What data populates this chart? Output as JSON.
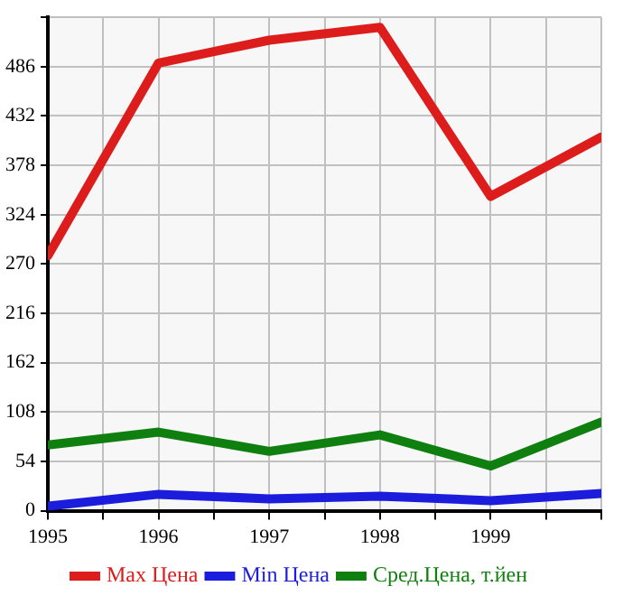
{
  "chart_data": {
    "type": "line",
    "x": [
      1995,
      1996,
      1997,
      1998,
      1999,
      2000
    ],
    "series": [
      {
        "name": "Max Цена",
        "color": "#dd1c1c",
        "values": [
          279,
          490,
          515,
          529,
          344,
          409
        ]
      },
      {
        "name": "Min Цена",
        "color": "#1c1cdd",
        "values": [
          5,
          18,
          13,
          16,
          11,
          19
        ]
      },
      {
        "name": "Сред.Цена, т.йен",
        "color": "#0f7f0f",
        "values": [
          72,
          86,
          65,
          83,
          49,
          97
        ]
      }
    ],
    "xlim": [
      1995,
      2000
    ],
    "xticks": [
      1995,
      {
        "value": 1995.5,
        "label": null
      },
      1996,
      {
        "value": 1996.5,
        "label": null
      },
      1997,
      {
        "value": 1997.5,
        "label": null
      },
      1998,
      {
        "value": 1998.5,
        "label": null
      },
      1999,
      {
        "value": 1999.5,
        "label": null
      },
      {
        "value": 2000,
        "label": null
      }
    ],
    "ylim": [
      0,
      540
    ],
    "yticks": [
      0,
      54,
      108,
      162,
      216,
      270,
      324,
      378,
      432,
      486,
      {
        "value": 540,
        "label": null
      }
    ],
    "grid": true,
    "legend": "bottom",
    "marker": "none",
    "line_style": "solid"
  }
}
